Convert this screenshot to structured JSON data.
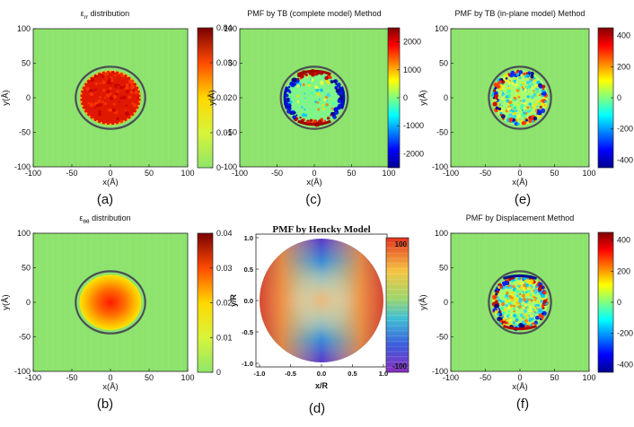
{
  "chart_data": [
    {
      "id": "a",
      "type": "heatmap",
      "title": "εrr distribution",
      "title_main": "ε",
      "title_sub": "rr",
      "title_rest": " distribution",
      "xlabel": "x(Å)",
      "ylabel": "y(Å)",
      "xlim": [
        -100,
        100
      ],
      "ylim": [
        -100,
        100
      ],
      "xticks": [
        -100,
        -50,
        0,
        50,
        100
      ],
      "yticks": [
        -100,
        -50,
        0,
        50,
        100
      ],
      "pattern": "disk-uniform",
      "colorbar": {
        "min": 0,
        "max": 0.04,
        "ticks": [
          0,
          0.01,
          0.02,
          0.03,
          0.04
        ],
        "labels": [
          "0",
          "0.01",
          "0.02",
          "0.03",
          "0.04"
        ],
        "colormap": "jet-upper"
      },
      "panel_label": "(a)"
    },
    {
      "id": "b",
      "type": "heatmap",
      "title": "εθθ distribution",
      "title_main": "ε",
      "title_sub": "θθ",
      "title_rest": " distribution",
      "xlabel": "x(Å)",
      "ylabel": "y(Å)",
      "xlim": [
        -100,
        100
      ],
      "ylim": [
        -100,
        100
      ],
      "xticks": [
        -100,
        -50,
        0,
        50,
        100
      ],
      "yticks": [
        -100,
        -50,
        0,
        50,
        100
      ],
      "pattern": "disk-radial",
      "colorbar": {
        "min": 0,
        "max": 0.04,
        "ticks": [
          0,
          0.01,
          0.02,
          0.03,
          0.04
        ],
        "labels": [
          "0",
          "0.01",
          "0.02",
          "0.03",
          "0.04"
        ],
        "colormap": "jet-upper"
      },
      "panel_label": "(b)"
    },
    {
      "id": "c",
      "type": "heatmap",
      "title": "PMF by TB (complete model) Method",
      "xlabel": "x(Å)",
      "ylabel": "y(Å)",
      "xlim": [
        -100,
        100
      ],
      "ylim": [
        -100,
        100
      ],
      "xticks": [
        -100,
        -50,
        0,
        50,
        100
      ],
      "yticks": [
        -100,
        -50,
        0,
        50,
        100
      ],
      "pattern": "ring-edge",
      "colorbar": {
        "min": -2500,
        "max": 2500,
        "ticks": [
          -2000,
          -1000,
          0,
          1000,
          2000
        ],
        "labels": [
          "-2000",
          "-1000",
          "0",
          "1000",
          "2000"
        ],
        "colormap": "jet"
      },
      "panel_label": "(c)"
    },
    {
      "id": "d",
      "type": "heatmap",
      "title": "PMF by Hencky Model",
      "xlabel": "x/R",
      "ylabel": "y/R",
      "xlim": [
        -1.0,
        1.0
      ],
      "ylim": [
        -1.0,
        1.0
      ],
      "xticks": [
        -1.0,
        -0.5,
        0.0,
        0.5,
        1.0
      ],
      "yticks": [
        -1.0,
        -0.5,
        0.0,
        0.5,
        1.0
      ],
      "xticklabels": [
        "-1.0",
        "-0.5",
        "0.0",
        "0.5",
        "1.0"
      ],
      "yticklabels": [
        "-1.0",
        "-0.5",
        "0.0",
        "0.5",
        "1.0"
      ],
      "pattern": "hencky-cos2theta",
      "colorbar": {
        "min": -110,
        "max": 110,
        "ticks": [
          -100,
          100
        ],
        "labels": [
          "-100",
          "100"
        ],
        "colormap": "rainbow"
      },
      "panel_label": "(d)"
    },
    {
      "id": "e",
      "type": "heatmap",
      "title": "PMF by TB (in-plane model) Method",
      "xlabel": "x(Å)",
      "ylabel": "y(Å)",
      "xlim": [
        -100,
        100
      ],
      "ylim": [
        -100,
        100
      ],
      "xticks": [
        -100,
        -50,
        0,
        50,
        100
      ],
      "yticks": [
        -100,
        -50,
        0,
        50,
        100
      ],
      "pattern": "ring-noisy",
      "colorbar": {
        "min": -450,
        "max": 450,
        "ticks": [
          -400,
          -200,
          0,
          200,
          400
        ],
        "labels": [
          "-400",
          "-200",
          "0",
          "200",
          "400"
        ],
        "colormap": "jet"
      },
      "panel_label": "(e)"
    },
    {
      "id": "f",
      "type": "heatmap",
      "title": "PMF by Displacement Method",
      "xlabel": "x(Å)",
      "ylabel": "y(Å)",
      "xlim": [
        -100,
        100
      ],
      "ylim": [
        -100,
        100
      ],
      "xticks": [
        -100,
        -50,
        0,
        50,
        100
      ],
      "yticks": [
        -100,
        -50,
        0,
        50,
        100
      ],
      "pattern": "ring-noisy-strong",
      "colorbar": {
        "min": -450,
        "max": 450,
        "ticks": [
          -400,
          -200,
          0,
          200,
          400
        ],
        "labels": [
          "-400",
          "-200",
          "0",
          "200",
          "400"
        ],
        "colormap": "jet"
      },
      "panel_label": "(f)"
    }
  ]
}
